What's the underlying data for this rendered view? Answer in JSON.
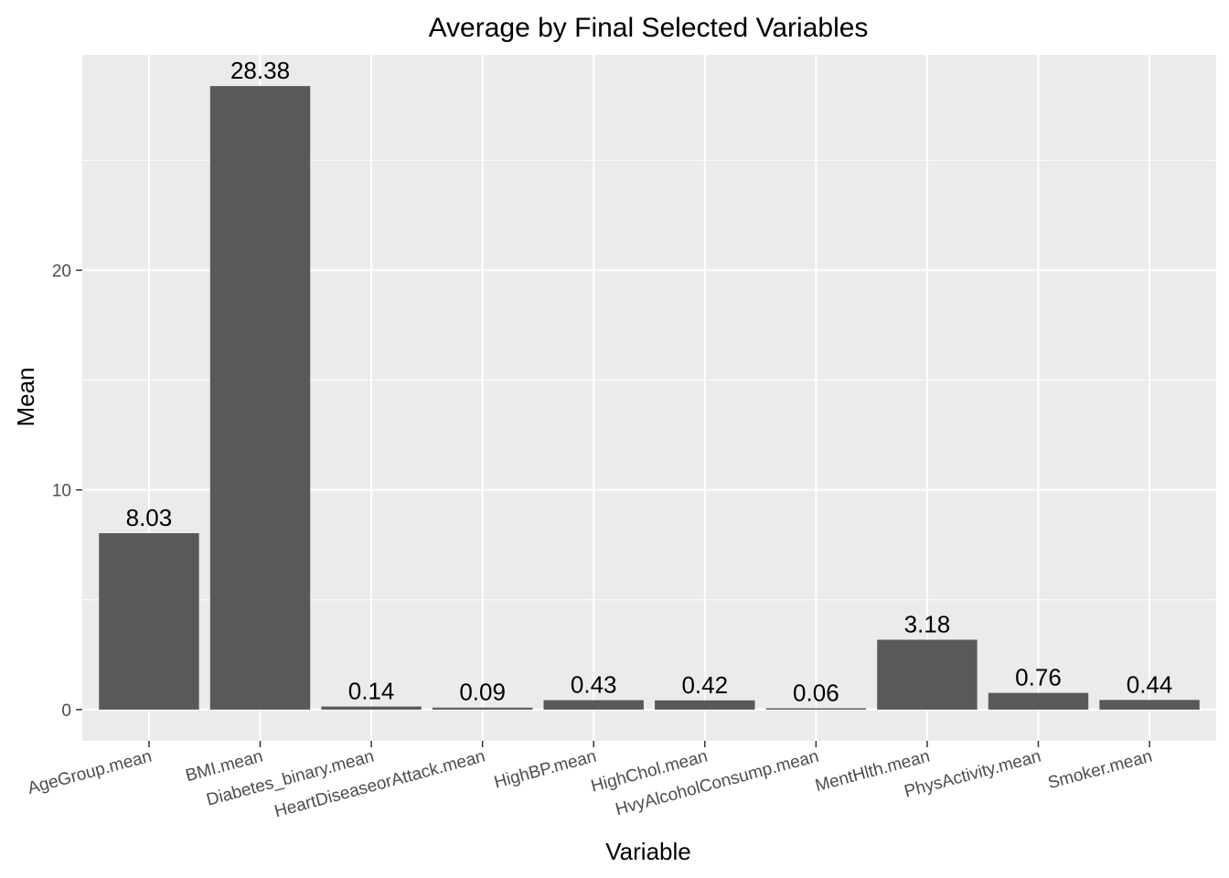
{
  "chart_data": {
    "type": "bar",
    "title": "Average by Final Selected Variables",
    "xlabel": "Variable",
    "ylabel": "Mean",
    "categories": [
      "AgeGroup.mean",
      "BMI.mean",
      "Diabetes_binary.mean",
      "HeartDiseaseorAttack.mean",
      "HighBP.mean",
      "HighChol.mean",
      "HvyAlcoholConsump.mean",
      "MentHlth.mean",
      "PhysActivity.mean",
      "Smoker.mean"
    ],
    "values": [
      8.03,
      28.38,
      0.14,
      0.09,
      0.43,
      0.42,
      0.06,
      3.18,
      0.76,
      0.44
    ],
    "data_labels": [
      "8.03",
      "28.38",
      "0.14",
      "0.09",
      "0.43",
      "0.42",
      "0.06",
      "3.18",
      "0.76",
      "0.44"
    ],
    "ylim": [
      -1.42,
      29.8
    ],
    "y_ticks": [
      0,
      10,
      20
    ],
    "y_tick_labels": [
      "0",
      "10",
      "20"
    ],
    "grid": true,
    "legend": "none",
    "colors": {
      "bar": "#595959",
      "panel": "#ebebeb",
      "grid": "#ffffff",
      "tick_text": "#4d4d4d",
      "text": "#000000"
    }
  }
}
